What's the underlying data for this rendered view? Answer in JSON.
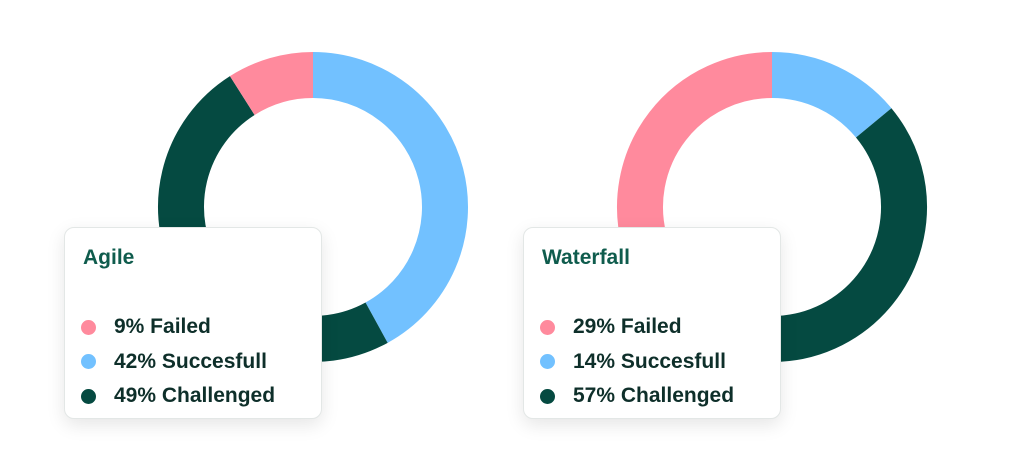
{
  "colors": {
    "failed": "#ff8a9d",
    "successful": "#72c1ff",
    "challenged": "#054a41"
  },
  "chart_data": [
    {
      "type": "pie",
      "title": "Agile",
      "categories": [
        "Failed",
        "Succesfull",
        "Challenged"
      ],
      "values": [
        9,
        42,
        49
      ],
      "labels": [
        "9% Failed",
        "42% Succesfull",
        "49% Challenged"
      ],
      "colors": [
        "#ff8a9d",
        "#72c1ff",
        "#054a41"
      ],
      "start_category": "Succesfull",
      "direction": "clockwise",
      "legend": "bottom-left"
    },
    {
      "type": "pie",
      "title": "Waterfall",
      "categories": [
        "Failed",
        "Succesfull",
        "Challenged"
      ],
      "values": [
        29,
        14,
        57
      ],
      "labels": [
        "29% Failed",
        "14% Succesfull",
        "57% Challenged"
      ],
      "colors": [
        "#ff8a9d",
        "#72c1ff",
        "#054a41"
      ],
      "start_category": "Succesfull",
      "direction": "clockwise",
      "legend": "bottom-left"
    }
  ]
}
